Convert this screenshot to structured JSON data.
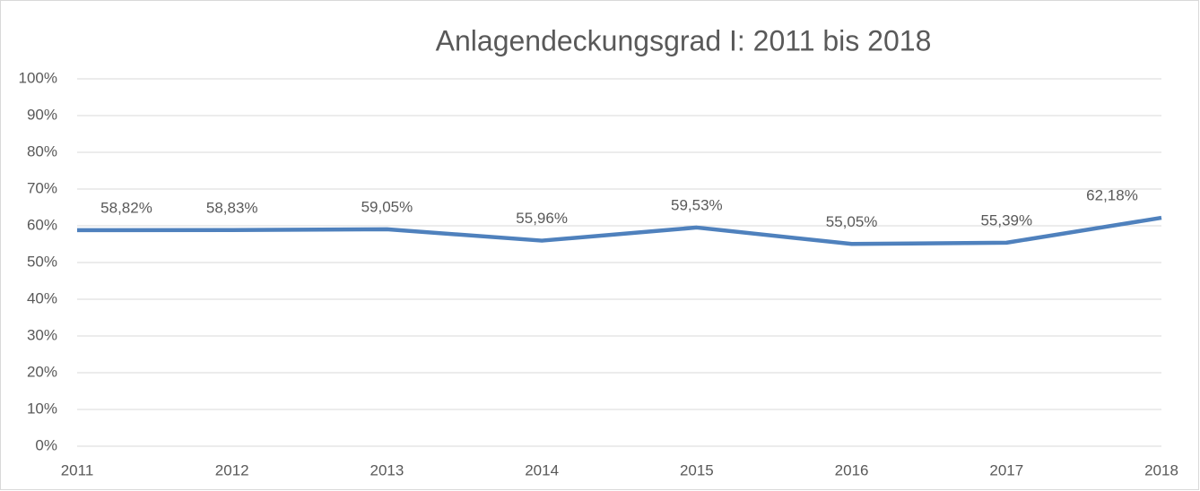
{
  "chart_data": {
    "type": "line",
    "title": "Anlagendeckungsgrad I: 2011 bis 2018",
    "categories": [
      "2011",
      "2012",
      "2013",
      "2014",
      "2015",
      "2016",
      "2017",
      "2018"
    ],
    "series": [
      {
        "color": "#4f81bd",
        "values": [
          58.82,
          58.83,
          59.05,
          55.96,
          59.53,
          55.05,
          55.39,
          62.18
        ],
        "value_labels": [
          "58,82%",
          "58,83%",
          "59,05%",
          "55,96%",
          "59,53%",
          "55,05%",
          "55,39%",
          "62,18%"
        ]
      }
    ],
    "ylim": [
      0,
      100
    ],
    "yticks": [
      {
        "value": 0,
        "label": "0%"
      },
      {
        "value": 10,
        "label": "10%"
      },
      {
        "value": 20,
        "label": "20%"
      },
      {
        "value": 30,
        "label": "30%"
      },
      {
        "value": 40,
        "label": "40%"
      },
      {
        "value": 50,
        "label": "50%"
      },
      {
        "value": 60,
        "label": "60%"
      },
      {
        "value": 70,
        "label": "70%"
      },
      {
        "value": 80,
        "label": "80%"
      },
      {
        "value": 90,
        "label": "90%"
      },
      {
        "value": 100,
        "label": "100%"
      }
    ],
    "grid": true
  }
}
